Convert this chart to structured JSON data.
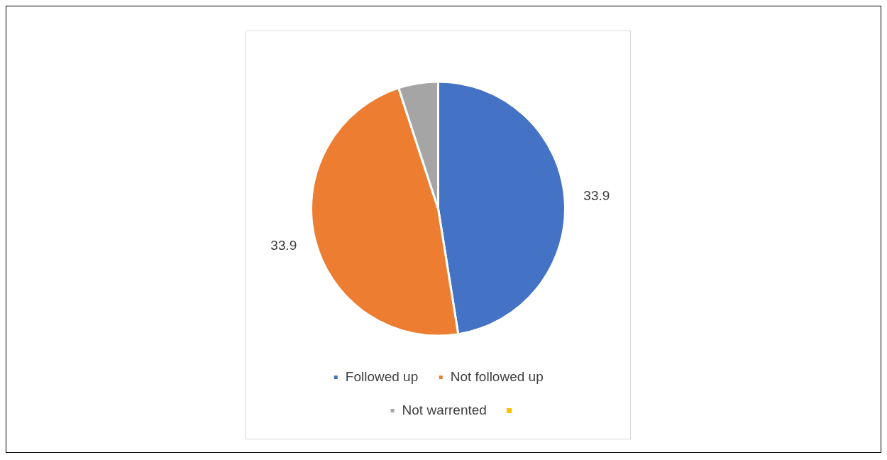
{
  "chart_data": {
    "type": "pie",
    "categories": [
      "Followed up",
      "Not followed up",
      "Not warrented",
      null
    ],
    "values": [
      33.9,
      33.9,
      3.6,
      0
    ],
    "colors": [
      "#4472c4",
      "#ed7d31",
      "#a5a5a5",
      "#ffc000"
    ],
    "value_labels": [
      "33.9",
      "33.9",
      null,
      null
    ],
    "legend": "bottom"
  }
}
